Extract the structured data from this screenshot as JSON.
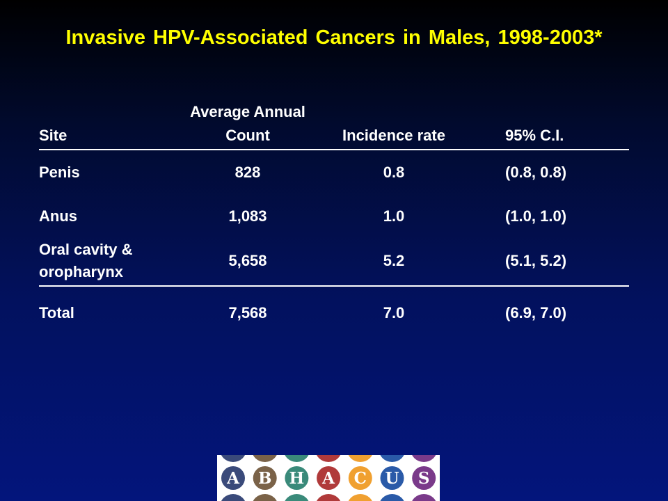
{
  "slide": {
    "title": "Invasive HPV-Associated Cancers in Males, 1998-2003*"
  },
  "table": {
    "headers": {
      "site": "Site",
      "count_line1": "Average Annual",
      "count_line2": "Count",
      "incidence": "Incidence rate",
      "ci": "95% C.I."
    },
    "rows": [
      {
        "site_line1": "Penis",
        "site_line2": "",
        "count": "828",
        "rate": "0.8",
        "ci": "(0.8, 0.8)"
      },
      {
        "site_line1": "Anus",
        "site_line2": "",
        "count": "1,083",
        "rate": "1.0",
        "ci": "(1.0, 1.0)"
      },
      {
        "site_line1": "Oral cavity &",
        "site_line2": "oropharynx",
        "count": "5,658",
        "rate": "5.2",
        "ci": "(5.1, 5.2)"
      }
    ],
    "total": {
      "site": "Total",
      "count": "7,568",
      "rate": "7.0",
      "ci": "(6.9, 7.0)"
    }
  },
  "logo": {
    "letters": [
      "A",
      "B",
      "H",
      "A",
      "C",
      "U",
      "S"
    ],
    "colors": [
      "#3a4a7a",
      "#7a6248",
      "#3a8a7a",
      "#b03a3a",
      "#f0a030",
      "#2a5aa8",
      "#7a3a8a"
    ]
  }
}
